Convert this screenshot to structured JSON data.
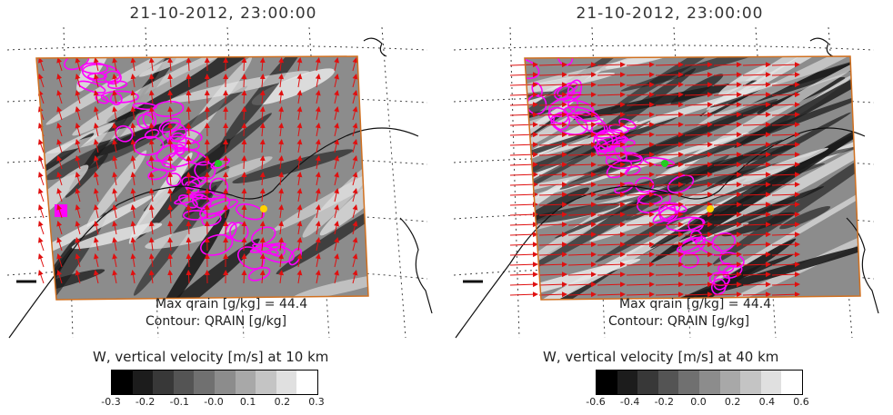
{
  "panels": [
    {
      "title": "21-10-2012, 23:00:00",
      "max_label": "Max qrain [g/kg] = 44.4",
      "contour_label": "Contour: QRAIN [g/kg]",
      "colorbar_title": "W, vertical velocity [m/s] at 10 km",
      "ticks": [
        "-0.3",
        "-0.2",
        "-0.1",
        "-0.0",
        "0.1",
        "0.2",
        "0.3"
      ],
      "wind_pattern": "northerly",
      "wave_pattern": "weak"
    },
    {
      "title": "21-10-2012, 23:00:00",
      "max_label": "Max qrain [g/kg] = 44.4",
      "contour_label": "Contour: QRAIN [g/kg]",
      "colorbar_title": "W, vertical velocity [m/s] at 40 km",
      "ticks": [
        "-0.6",
        "-0.4",
        "-0.2",
        "0.0",
        "0.2",
        "0.4",
        "0.6"
      ],
      "wind_pattern": "westerly",
      "wave_pattern": "strong"
    }
  ],
  "colors": {
    "wind_arrows": "#e01010",
    "rain_contour": "#ff00ff",
    "domain_border": "#d07020",
    "coastline": "#111111",
    "grid": "#444444",
    "marker_green": "#22cc22",
    "marker_yellow": "#ffd400"
  }
}
